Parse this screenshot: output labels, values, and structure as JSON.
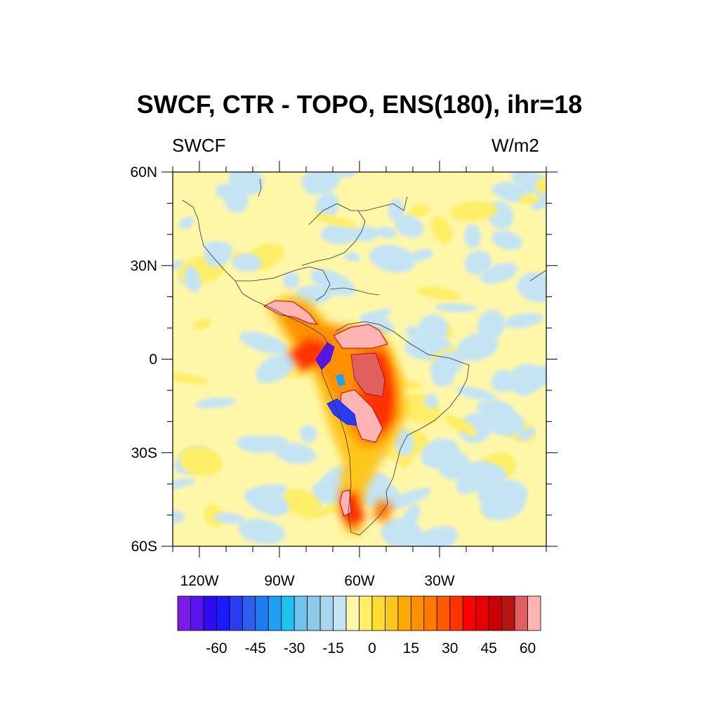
{
  "title": "SWCF, CTR - TOPO, ENS(180), ihr=18",
  "left_string": "SWCF",
  "right_string": "W/m2",
  "map": {
    "lon_range": [
      -130,
      10
    ],
    "lat_range": [
      -60,
      60
    ],
    "lat_ticks": [
      {
        "value": 60,
        "label": "60N"
      },
      {
        "value": 30,
        "label": "30N"
      },
      {
        "value": 0,
        "label": "0"
      },
      {
        "value": -30,
        "label": "30S"
      },
      {
        "value": -60,
        "label": "60S"
      }
    ],
    "lon_ticks": [
      {
        "value": -120,
        "label": "120W"
      },
      {
        "value": -90,
        "label": "90W"
      },
      {
        "value": -60,
        "label": "60W"
      },
      {
        "value": -30,
        "label": "30W"
      }
    ]
  },
  "colorbar": {
    "colors": [
      "#7b1be8",
      "#5a14ee",
      "#2e0cf2",
      "#1a1aff",
      "#2a3cf0",
      "#2e5ef0",
      "#1f7cf0",
      "#1ea0f7",
      "#1ec4f0",
      "#6ec4f0",
      "#8ccbe8",
      "#a8d6ec",
      "#c4e4f4",
      "#fff7a8",
      "#ffee66",
      "#ffdd33",
      "#ffc61a",
      "#ffaa00",
      "#ff9000",
      "#ff7a00",
      "#ff5a00",
      "#ff3300",
      "#ff0000",
      "#e60000",
      "#cc0000",
      "#b81414",
      "#e06060",
      "#ffb4b4"
    ],
    "labels": [
      "-60",
      "-45",
      "-30",
      "-15",
      "0",
      "15",
      "30",
      "45",
      "60"
    ],
    "label_values": [
      -60,
      -45,
      -30,
      -15,
      0,
      15,
      30,
      45,
      60
    ],
    "min": -75,
    "max": 65
  }
}
